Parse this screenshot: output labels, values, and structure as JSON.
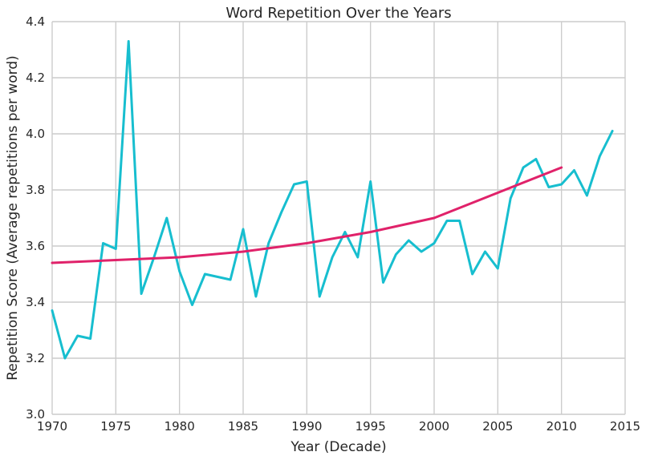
{
  "chart_data": {
    "type": "line",
    "title": "Word Repetition Over the Years",
    "xlabel": "Year (Decade)",
    "ylabel": "Repetition Score (Average repetitions per word)",
    "xlim": [
      1970,
      2015
    ],
    "ylim": [
      3.0,
      4.4
    ],
    "xticks": [
      1970,
      1975,
      1980,
      1985,
      1990,
      1995,
      2000,
      2005,
      2010,
      2015
    ],
    "yticks": [
      "3.0",
      "3.2",
      "3.4",
      "3.6",
      "3.8",
      "4.0",
      "4.2",
      "4.4"
    ],
    "grid": true,
    "legend": false,
    "series": [
      {
        "color": "#17becf",
        "x": [
          1970,
          1971,
          1972,
          1973,
          1974,
          1975,
          1976,
          1977,
          1978,
          1979,
          1980,
          1981,
          1982,
          1983,
          1984,
          1985,
          1986,
          1987,
          1988,
          1989,
          1990,
          1991,
          1992,
          1993,
          1994,
          1995,
          1996,
          1997,
          1998,
          1999,
          2000,
          2001,
          2002,
          2003,
          2004,
          2005,
          2006,
          2007,
          2008,
          2009,
          2010,
          2011,
          2012,
          2013,
          2014
        ],
        "y": [
          3.37,
          3.2,
          3.28,
          3.27,
          3.61,
          3.59,
          4.33,
          3.43,
          3.56,
          3.7,
          3.51,
          3.39,
          3.5,
          3.49,
          3.48,
          3.66,
          3.42,
          3.61,
          3.72,
          3.82,
          3.83,
          3.42,
          3.56,
          3.65,
          3.56,
          3.83,
          3.47,
          3.57,
          3.62,
          3.58,
          3.61,
          3.69,
          3.69,
          3.5,
          3.58,
          3.52,
          3.77,
          3.88,
          3.91,
          3.81,
          3.82,
          3.87,
          3.78,
          3.92,
          4.01
        ]
      },
      {
        "color": "#e0226a",
        "x": [
          1970,
          1975,
          1980,
          1985,
          1990,
          1995,
          2000,
          2005,
          2010
        ],
        "y": [
          3.54,
          3.55,
          3.56,
          3.58,
          3.61,
          3.65,
          3.7,
          3.79,
          3.88
        ]
      }
    ]
  }
}
